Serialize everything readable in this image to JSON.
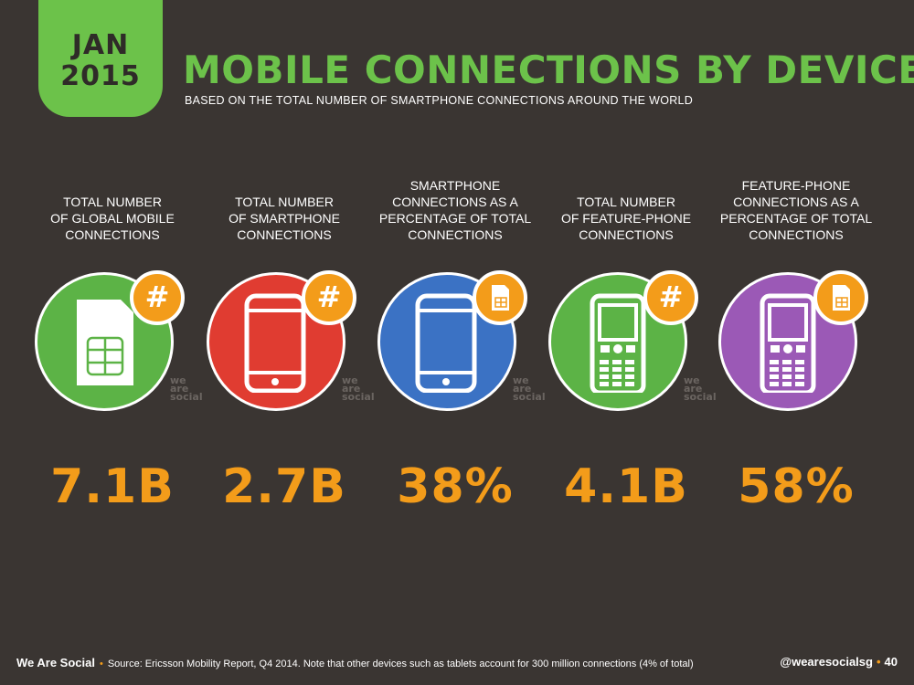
{
  "header": {
    "date_month": "JAN",
    "date_year": "2015",
    "title": "MOBILE CONNECTIONS BY DEVICE",
    "subtitle": "BASED ON THE TOTAL NUMBER OF SMARTPHONE CONNECTIONS AROUND THE WORLD"
  },
  "stats": [
    {
      "label": [
        "TOTAL NUMBER",
        "OF GLOBAL MOBILE",
        "CONNECTIONS"
      ],
      "value": "7.1B",
      "color": "#5cb346",
      "badge": "#",
      "icon": "sim-card-icon"
    },
    {
      "label": [
        "TOTAL NUMBER",
        "OF SMARTPHONE",
        "CONNECTIONS"
      ],
      "value": "2.7B",
      "color": "#e03c31",
      "badge": "#",
      "icon": "smartphone-icon"
    },
    {
      "label": [
        "SMARTPHONE",
        "CONNECTIONS AS A",
        "PERCENTAGE OF TOTAL",
        "CONNECTIONS"
      ],
      "value": "38%",
      "color": "#3b72c4",
      "badge": "sim-card",
      "icon": "smartphone-icon"
    },
    {
      "label": [
        "TOTAL NUMBER",
        "OF FEATURE-PHONE",
        "CONNECTIONS"
      ],
      "value": "4.1B",
      "color": "#5cb346",
      "badge": "#",
      "icon": "feature-phone-icon"
    },
    {
      "label": [
        "FEATURE-PHONE",
        "CONNECTIONS AS A",
        "PERCENTAGE OF TOTAL",
        "CONNECTIONS"
      ],
      "value": "58%",
      "color": "#9b59b6",
      "badge": "sim-card",
      "icon": "feature-phone-icon"
    }
  ],
  "watermark": [
    "we",
    "are",
    "social"
  ],
  "footer": {
    "brand": "We Are Social",
    "source": "Source: Ericsson Mobility Report, Q4 2014. Note that other devices such as tablets account for 300 million connections (4% of total)",
    "handle": "@wearesocialsg",
    "page": "40"
  },
  "colors": {
    "accent_green": "#6cc24a",
    "value_orange": "#f39c1a",
    "background": "#3a3532"
  }
}
